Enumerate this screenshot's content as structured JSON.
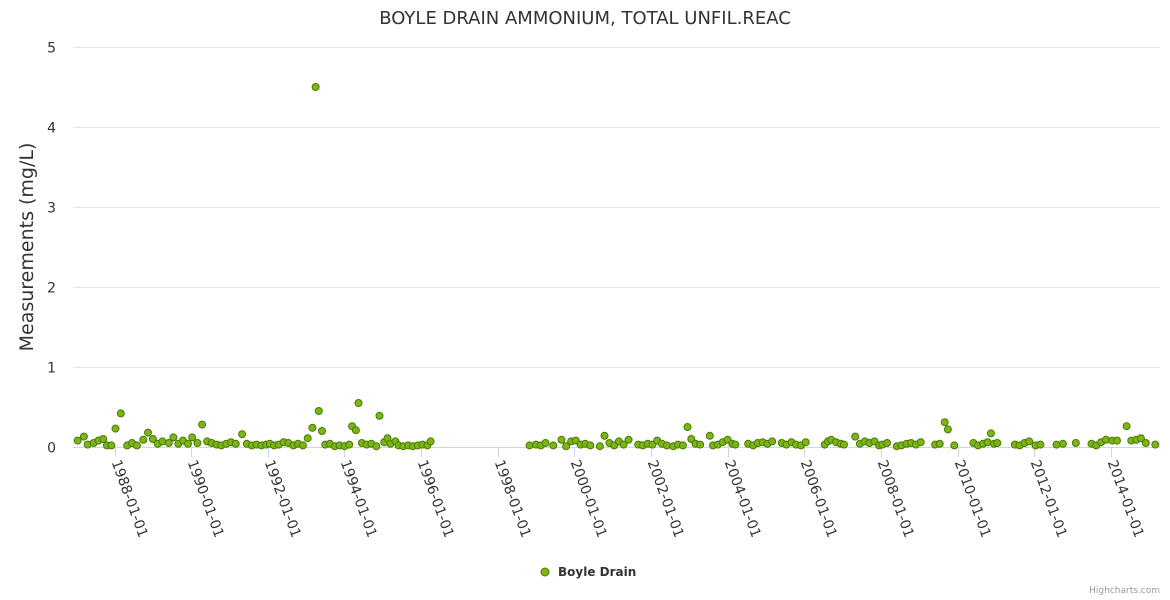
{
  "chart_data": {
    "type": "scatter",
    "title": "BOYLE DRAIN AMMONIUM, TOTAL UNFIL.REAC",
    "ylabel": "Measurements (mg/L)",
    "xlabel": "",
    "ylim": [
      0,
      5
    ],
    "yticks": [
      "0",
      "1",
      "2",
      "3",
      "4",
      "5"
    ],
    "xticks": [
      "1988-01-01",
      "1990-01-01",
      "1992-01-01",
      "1994-01-01",
      "1996-01-01",
      "1998-01-01",
      "2000-01-01",
      "2002-01-01",
      "2004-01-01",
      "2006-01-01",
      "2008-01-01",
      "2010-01-01",
      "2012-01-01",
      "2014-01-01"
    ],
    "grid": true,
    "legend_position": "bottom-center",
    "series": [
      {
        "name": "Boyle Drain",
        "color": "#7cb518",
        "points": [
          [
            "1987-01-15",
            0.08
          ],
          [
            "1987-03-15",
            0.13
          ],
          [
            "1987-04-20",
            0.03
          ],
          [
            "1987-06-15",
            0.05
          ],
          [
            "1987-08-01",
            0.08
          ],
          [
            "1987-09-15",
            0.1
          ],
          [
            "1987-10-20",
            0.02
          ],
          [
            "1987-12-01",
            0.02
          ],
          [
            "1988-01-10",
            0.23
          ],
          [
            "1988-03-01",
            0.42
          ],
          [
            "1988-05-01",
            0.02
          ],
          [
            "1988-06-15",
            0.05
          ],
          [
            "1988-08-01",
            0.02
          ],
          [
            "1988-10-01",
            0.09
          ],
          [
            "1988-11-15",
            0.18
          ],
          [
            "1989-01-01",
            0.1
          ],
          [
            "1989-02-15",
            0.04
          ],
          [
            "1989-04-01",
            0.07
          ],
          [
            "1989-06-01",
            0.05
          ],
          [
            "1989-07-15",
            0.12
          ],
          [
            "1989-09-01",
            0.04
          ],
          [
            "1989-10-15",
            0.08
          ],
          [
            "1989-12-01",
            0.04
          ],
          [
            "1990-01-10",
            0.12
          ],
          [
            "1990-03-01",
            0.05
          ],
          [
            "1990-04-15",
            0.28
          ],
          [
            "1990-06-01",
            0.07
          ],
          [
            "1990-07-15",
            0.05
          ],
          [
            "1990-09-01",
            0.03
          ],
          [
            "1990-10-15",
            0.02
          ],
          [
            "1990-12-01",
            0.04
          ],
          [
            "1991-01-15",
            0.06
          ],
          [
            "1991-03-01",
            0.04
          ],
          [
            "1991-05-01",
            0.16
          ],
          [
            "1991-06-15",
            0.04
          ],
          [
            "1991-08-01",
            0.02
          ],
          [
            "1991-09-15",
            0.03
          ],
          [
            "1991-11-01",
            0.02
          ],
          [
            "1991-12-15",
            0.03
          ],
          [
            "1992-01-20",
            0.04
          ],
          [
            "1992-03-01",
            0.02
          ],
          [
            "1992-04-15",
            0.03
          ],
          [
            "1992-06-01",
            0.06
          ],
          [
            "1992-07-15",
            0.05
          ],
          [
            "1992-09-01",
            0.02
          ],
          [
            "1992-10-15",
            0.04
          ],
          [
            "1992-12-01",
            0.02
          ],
          [
            "1993-01-15",
            0.11
          ],
          [
            "1993-03-01",
            0.24
          ],
          [
            "1993-04-01",
            4.5
          ],
          [
            "1993-05-01",
            0.45
          ],
          [
            "1993-06-01",
            0.2
          ],
          [
            "1993-07-01",
            0.03
          ],
          [
            "1993-08-15",
            0.04
          ],
          [
            "1993-10-01",
            0.01
          ],
          [
            "1993-11-15",
            0.02
          ],
          [
            "1994-01-01",
            0.01
          ],
          [
            "1994-02-15",
            0.03
          ],
          [
            "1994-03-15",
            0.26
          ],
          [
            "1994-04-20",
            0.21
          ],
          [
            "1994-05-15",
            0.55
          ],
          [
            "1994-06-15",
            0.05
          ],
          [
            "1994-08-01",
            0.03
          ],
          [
            "1994-09-15",
            0.04
          ],
          [
            "1994-11-01",
            0.01
          ],
          [
            "1994-12-01",
            0.39
          ],
          [
            "1995-01-15",
            0.06
          ],
          [
            "1995-02-15",
            0.11
          ],
          [
            "1995-03-15",
            0.04
          ],
          [
            "1995-05-01",
            0.07
          ],
          [
            "1995-06-01",
            0.02
          ],
          [
            "1995-07-15",
            0.01
          ],
          [
            "1995-09-01",
            0.02
          ],
          [
            "1995-10-15",
            0.01
          ],
          [
            "1995-12-01",
            0.02
          ],
          [
            "1996-01-15",
            0.03
          ],
          [
            "1996-03-01",
            0.02
          ],
          [
            "1996-04-01",
            0.07
          ],
          [
            "1998-11-01",
            0.02
          ],
          [
            "1999-01-01",
            0.03
          ],
          [
            "1999-02-15",
            0.02
          ],
          [
            "1999-04-01",
            0.05
          ],
          [
            "1999-06-15",
            0.02
          ],
          [
            "1999-09-01",
            0.09
          ],
          [
            "1999-10-15",
            0.01
          ],
          [
            "1999-12-01",
            0.07
          ],
          [
            "2000-01-15",
            0.08
          ],
          [
            "2000-03-01",
            0.03
          ],
          [
            "2000-04-15",
            0.04
          ],
          [
            "2000-06-01",
            0.02
          ],
          [
            "2000-09-01",
            0.01
          ],
          [
            "2000-10-15",
            0.14
          ],
          [
            "2000-12-01",
            0.05
          ],
          [
            "2001-01-15",
            0.02
          ],
          [
            "2001-03-01",
            0.07
          ],
          [
            "2001-04-15",
            0.03
          ],
          [
            "2001-06-01",
            0.09
          ],
          [
            "2001-09-01",
            0.03
          ],
          [
            "2001-10-15",
            0.02
          ],
          [
            "2001-12-01",
            0.04
          ],
          [
            "2002-01-15",
            0.03
          ],
          [
            "2002-03-01",
            0.08
          ],
          [
            "2002-04-15",
            0.04
          ],
          [
            "2002-06-01",
            0.02
          ],
          [
            "2002-08-01",
            0.01
          ],
          [
            "2002-09-15",
            0.03
          ],
          [
            "2002-11-01",
            0.02
          ],
          [
            "2002-12-15",
            0.25
          ],
          [
            "2003-01-20",
            0.1
          ],
          [
            "2003-03-01",
            0.04
          ],
          [
            "2003-04-15",
            0.03
          ],
          [
            "2003-07-15",
            0.14
          ],
          [
            "2003-08-15",
            0.02
          ],
          [
            "2003-10-01",
            0.03
          ],
          [
            "2003-11-15",
            0.06
          ],
          [
            "2004-01-01",
            0.09
          ],
          [
            "2004-02-15",
            0.04
          ],
          [
            "2004-03-15",
            0.03
          ],
          [
            "2004-07-15",
            0.04
          ],
          [
            "2004-09-01",
            0.02
          ],
          [
            "2004-10-15",
            0.05
          ],
          [
            "2004-12-01",
            0.06
          ],
          [
            "2005-01-15",
            0.04
          ],
          [
            "2005-03-01",
            0.07
          ],
          [
            "2005-06-01",
            0.05
          ],
          [
            "2005-07-15",
            0.03
          ],
          [
            "2005-09-01",
            0.06
          ],
          [
            "2005-10-15",
            0.03
          ],
          [
            "2005-12-01",
            0.02
          ],
          [
            "2006-01-15",
            0.06
          ],
          [
            "2006-07-15",
            0.03
          ],
          [
            "2006-08-15",
            0.07
          ],
          [
            "2006-09-15",
            0.09
          ],
          [
            "2006-11-01",
            0.06
          ],
          [
            "2006-12-15",
            0.04
          ],
          [
            "2007-01-15",
            0.03
          ],
          [
            "2007-05-01",
            0.13
          ],
          [
            "2007-06-15",
            0.04
          ],
          [
            "2007-08-01",
            0.07
          ],
          [
            "2007-09-15",
            0.05
          ],
          [
            "2007-11-01",
            0.07
          ],
          [
            "2007-12-15",
            0.02
          ],
          [
            "2008-01-15",
            0.03
          ],
          [
            "2008-03-01",
            0.05
          ],
          [
            "2008-06-01",
            0.01
          ],
          [
            "2008-07-15",
            0.02
          ],
          [
            "2008-09-01",
            0.04
          ],
          [
            "2008-10-15",
            0.05
          ],
          [
            "2008-12-01",
            0.03
          ],
          [
            "2009-01-15",
            0.06
          ],
          [
            "2009-06-01",
            0.03
          ],
          [
            "2009-07-15",
            0.04
          ],
          [
            "2009-09-01",
            0.31
          ],
          [
            "2009-10-01",
            0.22
          ],
          [
            "2009-12-01",
            0.02
          ],
          [
            "2010-06-01",
            0.05
          ],
          [
            "2010-07-15",
            0.02
          ],
          [
            "2010-09-01",
            0.04
          ],
          [
            "2010-10-15",
            0.06
          ],
          [
            "2010-11-15",
            0.17
          ],
          [
            "2010-12-15",
            0.04
          ],
          [
            "2011-01-15",
            0.05
          ],
          [
            "2011-07-01",
            0.03
          ],
          [
            "2011-08-15",
            0.02
          ],
          [
            "2011-10-01",
            0.05
          ],
          [
            "2011-11-15",
            0.07
          ],
          [
            "2012-01-15",
            0.02
          ],
          [
            "2012-03-01",
            0.03
          ],
          [
            "2012-08-01",
            0.03
          ],
          [
            "2012-10-01",
            0.04
          ],
          [
            "2013-02-01",
            0.05
          ],
          [
            "2013-07-01",
            0.04
          ],
          [
            "2013-08-15",
            0.02
          ],
          [
            "2013-10-01",
            0.06
          ],
          [
            "2013-11-15",
            0.09
          ],
          [
            "2014-01-15",
            0.08
          ],
          [
            "2014-03-01",
            0.08
          ],
          [
            "2014-06-01",
            0.26
          ],
          [
            "2014-07-15",
            0.08
          ],
          [
            "2014-09-01",
            0.09
          ],
          [
            "2014-10-15",
            0.11
          ],
          [
            "2014-12-01",
            0.05
          ],
          [
            "2015-03-01",
            0.03
          ]
        ]
      }
    ]
  },
  "credits": "Highcharts.com"
}
